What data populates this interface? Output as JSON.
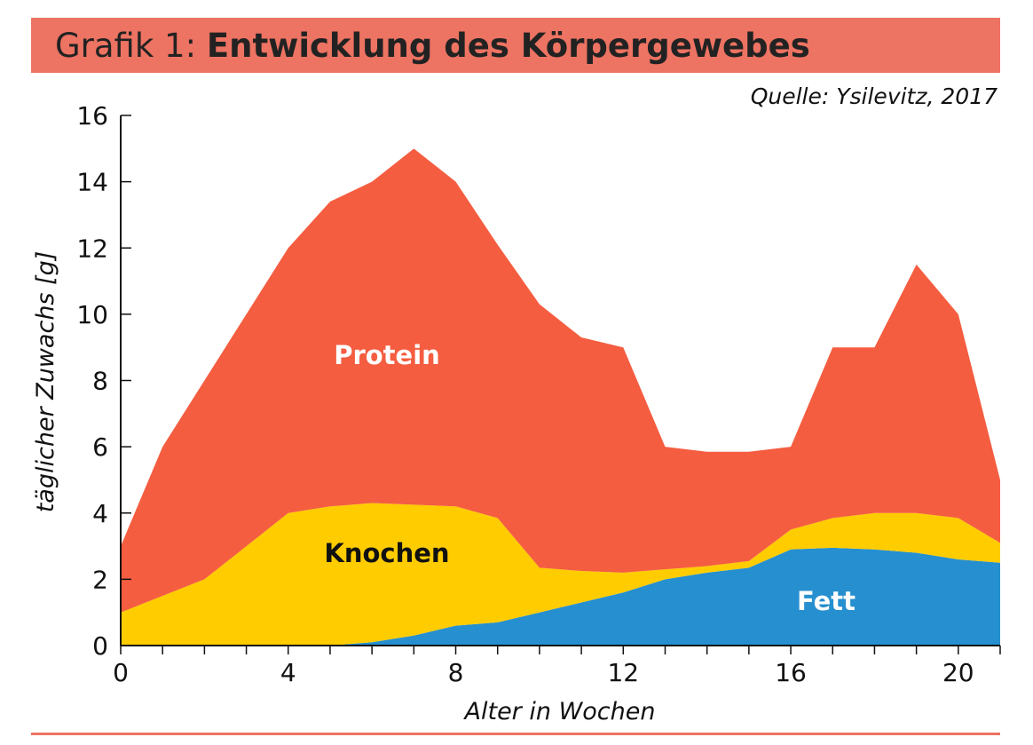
{
  "header": {
    "title_prefix": "Grafik 1:",
    "title_main": "Entwicklung des Körpergewebes"
  },
  "source": "Quelle: Ysilevitz, 2017",
  "chart_data": {
    "type": "area",
    "stacked": true,
    "title": "Entwicklung des Körpergewebes",
    "xlabel": "Alter in Wochen",
    "ylabel": "täglicher Zuwachs [g]",
    "xlim": [
      0,
      21
    ],
    "ylim": [
      0,
      16
    ],
    "xticks": [
      0,
      4,
      8,
      12,
      16,
      20
    ],
    "yticks": [
      0,
      2,
      4,
      6,
      8,
      10,
      12,
      14,
      16
    ],
    "grid": false,
    "legend": "inline labels",
    "x": [
      0,
      1,
      2,
      3,
      4,
      5,
      6,
      7,
      8,
      9,
      10,
      11,
      12,
      13,
      14,
      15,
      16,
      17,
      18,
      19,
      20,
      21
    ],
    "series": [
      {
        "name": "Fett",
        "color": "#268FCF",
        "label_color": "#FFFFFF",
        "values": [
          0,
          0,
          0,
          0,
          0,
          0,
          0.1,
          0.3,
          0.6,
          0.7,
          1.0,
          1.3,
          1.6,
          2.0,
          2.2,
          2.35,
          2.9,
          2.95,
          2.9,
          2.8,
          2.6,
          2.5
        ]
      },
      {
        "name": "Knochen",
        "color": "#FFCC00",
        "label_color": "#111111",
        "values": [
          1,
          1.5,
          2,
          3,
          4,
          4.2,
          4.2,
          3.95,
          3.6,
          3.15,
          1.35,
          0.95,
          0.6,
          0.3,
          0.2,
          0.2,
          0.6,
          0.9,
          1.1,
          1.2,
          1.25,
          0.6
        ]
      },
      {
        "name": "Protein",
        "color": "#F55D40",
        "label_color": "#FFFFFF",
        "values": [
          2,
          4.5,
          6,
          7,
          8,
          9.2,
          9.7,
          10.75,
          9.8,
          8.25,
          7.95,
          7.05,
          6.8,
          3.7,
          3.45,
          3.3,
          2.5,
          5.15,
          5,
          7.5,
          6.15,
          1.9
        ]
      }
    ]
  }
}
